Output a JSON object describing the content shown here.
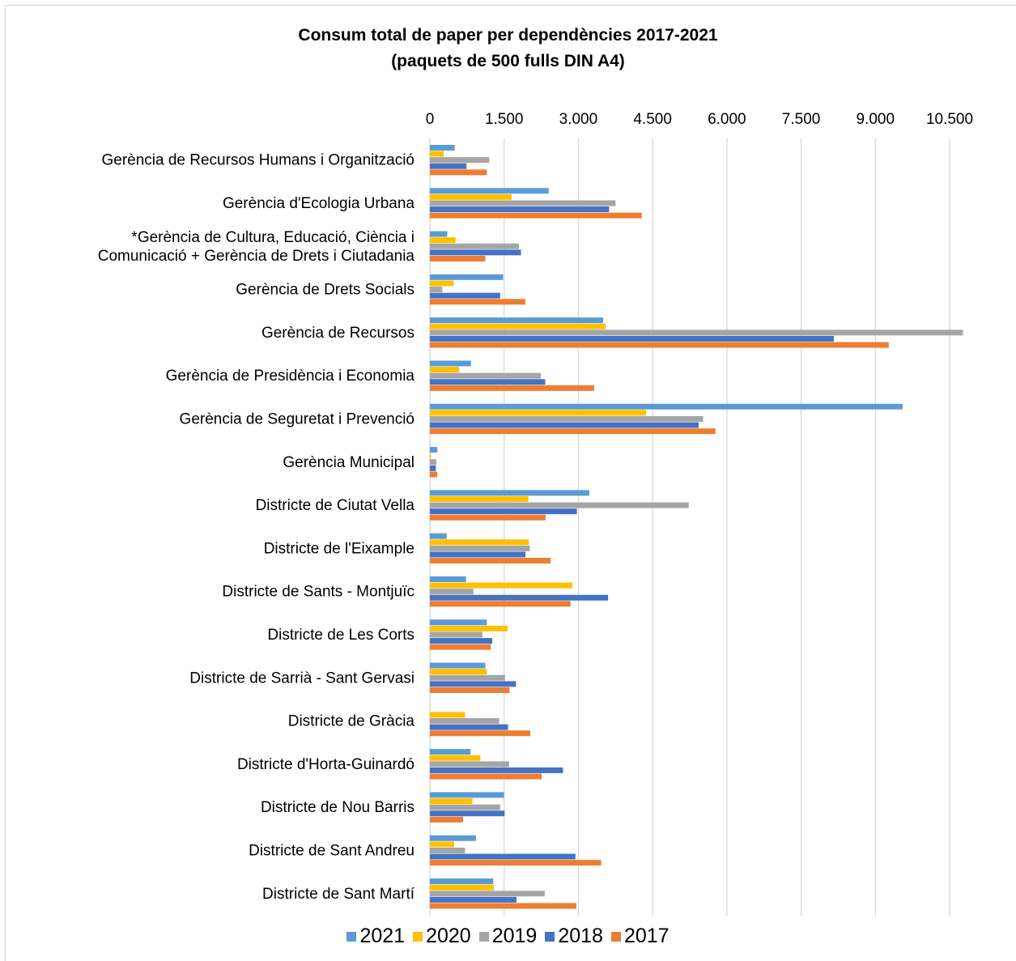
{
  "chart_data": {
    "type": "bar",
    "orientation": "horizontal",
    "title": "Consum total de paper per dependències 2017-2021",
    "subtitle": "(paquets de 500 fulls DIN A4)",
    "xlabel": "",
    "ylabel": "",
    "xlim": [
      0,
      10500
    ],
    "x_ticks": [
      0,
      1500,
      3000,
      4500,
      6000,
      7500,
      9000,
      10500
    ],
    "x_tick_labels": [
      "0",
      "1.500",
      "3.000",
      "4.500",
      "6.000",
      "7.500",
      "9.000",
      "10.500"
    ],
    "grid": true,
    "legend_position": "bottom",
    "categories": [
      [
        "Gerència de Recursos Humans i Organització"
      ],
      [
        "Gerència d'Ecologia Urbana"
      ],
      [
        "*Gerència de Cultura, Educació, Ciència i",
        "Comunicació + Gerència de Drets i Ciutadania"
      ],
      [
        "Gerència de Drets Socials"
      ],
      [
        "Gerència de Recursos"
      ],
      [
        "Gerència de Presidència i Economia"
      ],
      [
        "Gerència de Seguretat i Prevenció"
      ],
      [
        "Gerència Municipal"
      ],
      [
        "Districte de Ciutat Vella"
      ],
      [
        "Districte de l'Eixample"
      ],
      [
        "Districte de Sants - Montjuïc"
      ],
      [
        "Districte de Les Corts"
      ],
      [
        "Districte de Sarrià - Sant Gervasi"
      ],
      [
        "Districte de Gràcia"
      ],
      [
        "Districte d'Horta-Guinardó"
      ],
      [
        "Districte de Nou Barris"
      ],
      [
        "Districte de Sant Andreu"
      ],
      [
        "Districte de Sant Martí"
      ]
    ],
    "series": [
      {
        "name": "2021",
        "color": "#5b9bd5",
        "values": [
          500,
          2400,
          350,
          1480,
          3500,
          830,
          9550,
          150,
          3220,
          340,
          730,
          1150,
          1120,
          0,
          820,
          1500,
          930,
          1280
        ]
      },
      {
        "name": "2020",
        "color": "#ffc000",
        "values": [
          280,
          1650,
          520,
          480,
          3550,
          590,
          4370,
          20,
          1990,
          2000,
          2880,
          1570,
          1150,
          710,
          1020,
          860,
          490,
          1290
        ]
      },
      {
        "name": "2019",
        "color": "#a5a5a5",
        "values": [
          1200,
          3750,
          1800,
          250,
          10770,
          2240,
          5520,
          130,
          5230,
          2020,
          880,
          1060,
          1520,
          1400,
          1600,
          1420,
          710,
          2320
        ]
      },
      {
        "name": "2018",
        "color": "#4472c4",
        "values": [
          740,
          3620,
          1840,
          1420,
          8160,
          2330,
          5430,
          120,
          2970,
          1930,
          3600,
          1260,
          1740,
          1580,
          2690,
          1510,
          2940,
          1750
        ]
      },
      {
        "name": "2017",
        "color": "#ed7d31",
        "values": [
          1150,
          4280,
          1120,
          1930,
          9270,
          3320,
          5770,
          150,
          2340,
          2440,
          2840,
          1230,
          1610,
          2030,
          2260,
          670,
          3460,
          2960
        ]
      }
    ],
    "legend_order": [
      "2021",
      "2020",
      "2019",
      "2018",
      "2017"
    ]
  }
}
